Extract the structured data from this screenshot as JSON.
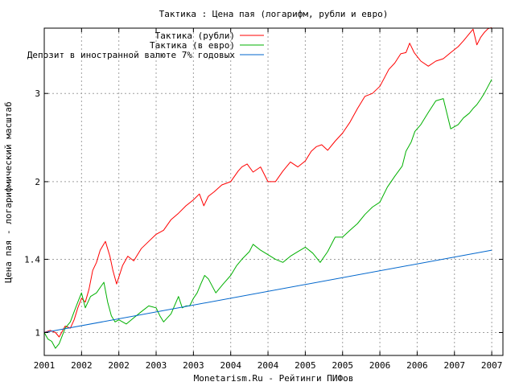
{
  "chart_data": {
    "type": "line",
    "title": "Тактика : Цена пая (логарифм, рубли и евро)",
    "xlabel": "Monetarism.Ru - Рейтинги ПИФов",
    "ylabel": "Цена пая - логарифмический масштаб",
    "y_scale": "log",
    "ylim": [
      0.9,
      4.05
    ],
    "xlim": [
      2001.0,
      2007.15
    ],
    "grid": true,
    "legend_position": "top-center",
    "x_ticks": [
      {
        "value": 2001.0,
        "label": "2001"
      },
      {
        "value": 2001.5,
        "label": "2002"
      },
      {
        "value": 2002.0,
        "label": "2002"
      },
      {
        "value": 2002.5,
        "label": "2003"
      },
      {
        "value": 2003.0,
        "label": "2003"
      },
      {
        "value": 2003.5,
        "label": "2004"
      },
      {
        "value": 2004.0,
        "label": "2004"
      },
      {
        "value": 2004.5,
        "label": "2005"
      },
      {
        "value": 2005.0,
        "label": "2005"
      },
      {
        "value": 2005.5,
        "label": "2006"
      },
      {
        "value": 2006.0,
        "label": "2006"
      },
      {
        "value": 2006.5,
        "label": "2007"
      },
      {
        "value": 2007.0,
        "label": "2007"
      }
    ],
    "y_ticks": [
      {
        "value": 1,
        "label": "1"
      },
      {
        "value": 1.4,
        "label": "1.4"
      },
      {
        "value": 2,
        "label": "2"
      },
      {
        "value": 3,
        "label": "3"
      }
    ],
    "series": [
      {
        "name": "Тактика (рубли)",
        "color": "#ff0000",
        "x": [
          2001.0,
          2001.08,
          2001.15,
          2001.2,
          2001.28,
          2001.35,
          2001.4,
          2001.45,
          2001.5,
          2001.55,
          2001.6,
          2001.65,
          2001.7,
          2001.75,
          2001.82,
          2001.88,
          2001.92,
          2001.97,
          2002.05,
          2002.12,
          2002.2,
          2002.3,
          2002.4,
          2002.5,
          2002.6,
          2002.7,
          2002.8,
          2002.9,
          2003.0,
          2003.08,
          2003.14,
          2003.2,
          2003.28,
          2003.38,
          2003.5,
          2003.6,
          2003.65,
          2003.72,
          2003.8,
          2003.9,
          2004.0,
          2004.1,
          2004.2,
          2004.3,
          2004.4,
          2004.5,
          2004.58,
          2004.65,
          2004.72,
          2004.8,
          2004.9,
          2005.0,
          2005.1,
          2005.2,
          2005.3,
          2005.4,
          2005.5,
          2005.55,
          2005.62,
          2005.7,
          2005.78,
          2005.85,
          2005.9,
          2005.96,
          2006.05,
          2006.15,
          2006.25,
          2006.35,
          2006.45,
          2006.55,
          2006.62,
          2006.7,
          2006.75,
          2006.8,
          2006.85,
          2006.9,
          2006.95,
          2007.0
        ],
        "y": [
          1.0,
          1.01,
          1.0,
          0.98,
          1.03,
          1.02,
          1.06,
          1.12,
          1.17,
          1.15,
          1.22,
          1.33,
          1.38,
          1.46,
          1.52,
          1.42,
          1.33,
          1.25,
          1.36,
          1.42,
          1.39,
          1.47,
          1.52,
          1.57,
          1.6,
          1.68,
          1.73,
          1.79,
          1.84,
          1.89,
          1.79,
          1.87,
          1.91,
          1.97,
          2.0,
          2.1,
          2.14,
          2.17,
          2.09,
          2.14,
          2.0,
          2.0,
          2.1,
          2.19,
          2.14,
          2.2,
          2.3,
          2.35,
          2.37,
          2.31,
          2.41,
          2.5,
          2.63,
          2.8,
          2.96,
          3.0,
          3.1,
          3.2,
          3.35,
          3.45,
          3.6,
          3.62,
          3.78,
          3.62,
          3.48,
          3.4,
          3.48,
          3.52,
          3.62,
          3.72,
          3.82,
          3.95,
          4.03,
          3.75,
          3.88,
          3.97,
          4.04,
          4.06
        ]
      },
      {
        "name": "Тактика (в евро)",
        "color": "#00b000",
        "x": [
          2001.0,
          2001.05,
          2001.1,
          2001.15,
          2001.2,
          2001.28,
          2001.35,
          2001.4,
          2001.45,
          2001.5,
          2001.55,
          2001.62,
          2001.7,
          2001.75,
          2001.8,
          2001.85,
          2001.9,
          2001.95,
          2002.0,
          2002.1,
          2002.2,
          2002.3,
          2002.4,
          2002.5,
          2002.55,
          2002.6,
          2002.7,
          2002.8,
          2002.85,
          2002.9,
          2002.95,
          2003.0,
          2003.05,
          2003.1,
          2003.15,
          2003.2,
          2003.3,
          2003.4,
          2003.5,
          2003.58,
          2003.65,
          2003.75,
          2003.8,
          2003.9,
          2004.0,
          2004.1,
          2004.2,
          2004.3,
          2004.4,
          2004.5,
          2004.6,
          2004.7,
          2004.8,
          2004.9,
          2005.0,
          2005.1,
          2005.2,
          2005.3,
          2005.4,
          2005.5,
          2005.6,
          2005.7,
          2005.8,
          2005.85,
          2005.92,
          2005.97,
          2006.05,
          2006.15,
          2006.25,
          2006.35,
          2006.45,
          2006.55,
          2006.62,
          2006.7,
          2006.75,
          2006.8,
          2006.85,
          2006.9,
          2006.95,
          2007.0
        ],
        "y": [
          1.0,
          0.97,
          0.96,
          0.93,
          0.95,
          1.02,
          1.05,
          1.1,
          1.15,
          1.2,
          1.12,
          1.18,
          1.2,
          1.23,
          1.26,
          1.15,
          1.08,
          1.05,
          1.06,
          1.04,
          1.07,
          1.1,
          1.13,
          1.12,
          1.08,
          1.05,
          1.09,
          1.18,
          1.12,
          1.13,
          1.13,
          1.17,
          1.2,
          1.25,
          1.3,
          1.28,
          1.2,
          1.25,
          1.3,
          1.36,
          1.4,
          1.45,
          1.5,
          1.46,
          1.43,
          1.4,
          1.38,
          1.42,
          1.45,
          1.48,
          1.44,
          1.38,
          1.45,
          1.55,
          1.55,
          1.6,
          1.65,
          1.72,
          1.78,
          1.82,
          1.95,
          2.05,
          2.15,
          2.3,
          2.4,
          2.52,
          2.6,
          2.75,
          2.9,
          2.93,
          2.55,
          2.6,
          2.68,
          2.74,
          2.8,
          2.85,
          2.92,
          3.0,
          3.1,
          3.2
        ]
      },
      {
        "name": "Депозит в иностранной валюте 7% годовых",
        "color": "#0066cc",
        "x": [
          2001.0,
          2007.0
        ],
        "y": [
          1.0,
          1.46
        ]
      }
    ]
  }
}
